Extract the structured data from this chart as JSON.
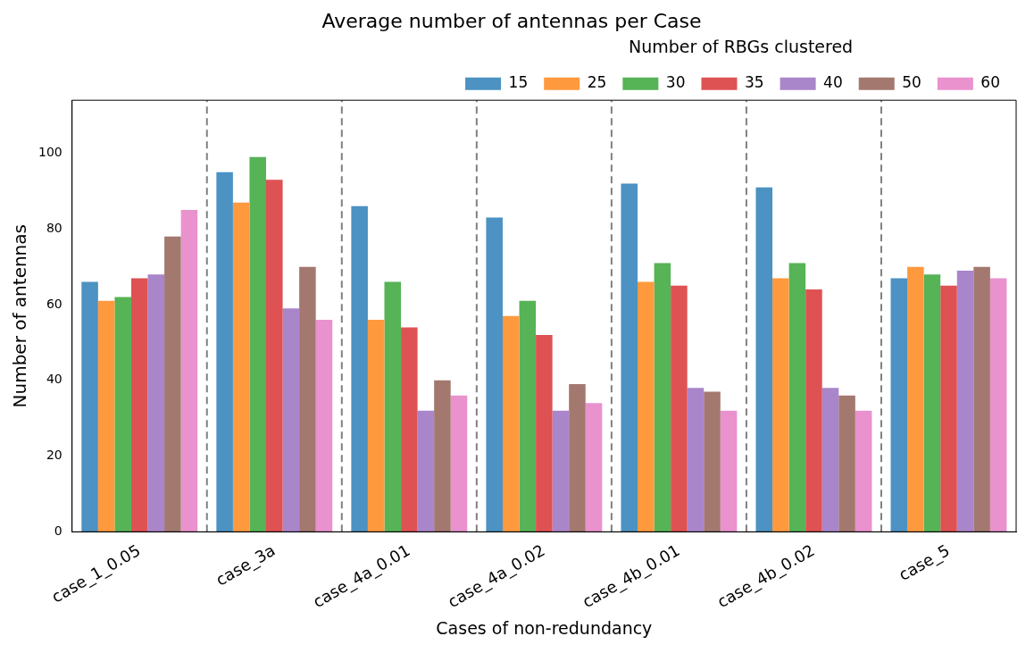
{
  "chart_data": {
    "type": "bar",
    "title": "Average number of antennas per Case",
    "xlabel": "Cases of non-redundancy",
    "ylabel": "Number of antennas",
    "legend_title": "Number of RBGs clustered",
    "legend": "top right",
    "grid": false,
    "categories": [
      "case_1_0.05",
      "case_3a",
      "case_4a_0.01",
      "case_4a_0.02",
      "case_4b_0.01",
      "case_4b_0.02",
      "case_5"
    ],
    "ylim": [
      0,
      114
    ],
    "yticks": [
      0,
      20,
      40,
      60,
      80,
      100
    ],
    "series": [
      {
        "name": "15",
        "color": "#4c92c3",
        "values": [
          66,
          95,
          86,
          83,
          92,
          91,
          67
        ]
      },
      {
        "name": "25",
        "color": "#ff993e",
        "values": [
          61,
          87,
          56,
          57,
          66,
          67,
          70
        ]
      },
      {
        "name": "30",
        "color": "#56b356",
        "values": [
          62,
          99,
          66,
          61,
          71,
          71,
          68
        ]
      },
      {
        "name": "35",
        "color": "#de5253",
        "values": [
          67,
          93,
          54,
          52,
          65,
          64,
          65
        ]
      },
      {
        "name": "40",
        "color": "#a985ca",
        "values": [
          68,
          59,
          32,
          32,
          38,
          38,
          69
        ]
      },
      {
        "name": "50",
        "color": "#a3786f",
        "values": [
          78,
          70,
          40,
          39,
          37,
          36,
          70
        ]
      },
      {
        "name": "60",
        "color": "#e992ce",
        "values": [
          85,
          56,
          36,
          34,
          32,
          32,
          67
        ]
      }
    ]
  }
}
